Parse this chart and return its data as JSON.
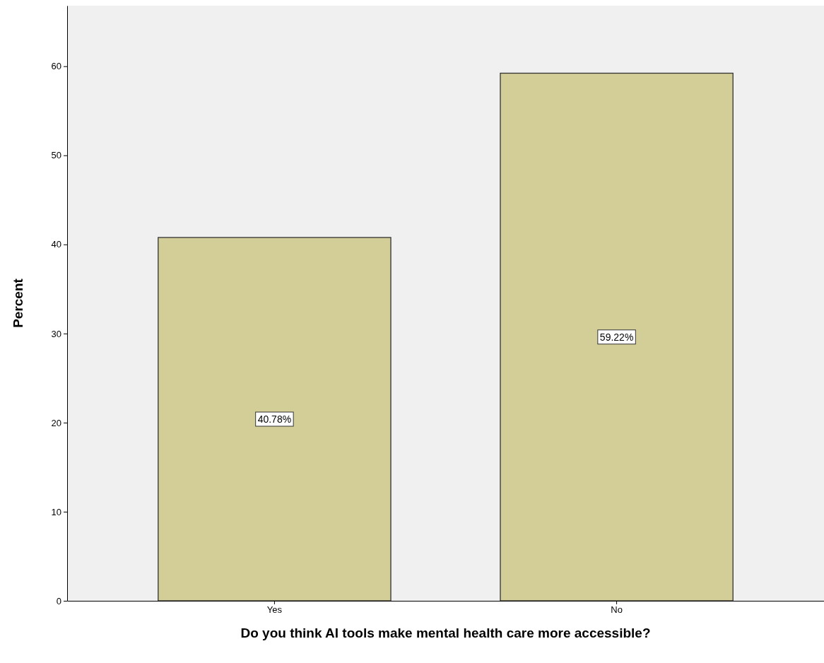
{
  "chart_data": {
    "type": "bar",
    "xlabel": "Do you think AI tools make mental health care more accessible?",
    "ylabel": "Percent",
    "categories": [
      "Yes",
      "No"
    ],
    "values": [
      40.78,
      59.22
    ],
    "value_labels": [
      "40.78%",
      "59.22%"
    ],
    "color": "#d3ce98",
    "ylim": [
      0,
      66.8
    ],
    "yticks": [
      0,
      10,
      20,
      30,
      40,
      50,
      60
    ],
    "grid": false
  }
}
